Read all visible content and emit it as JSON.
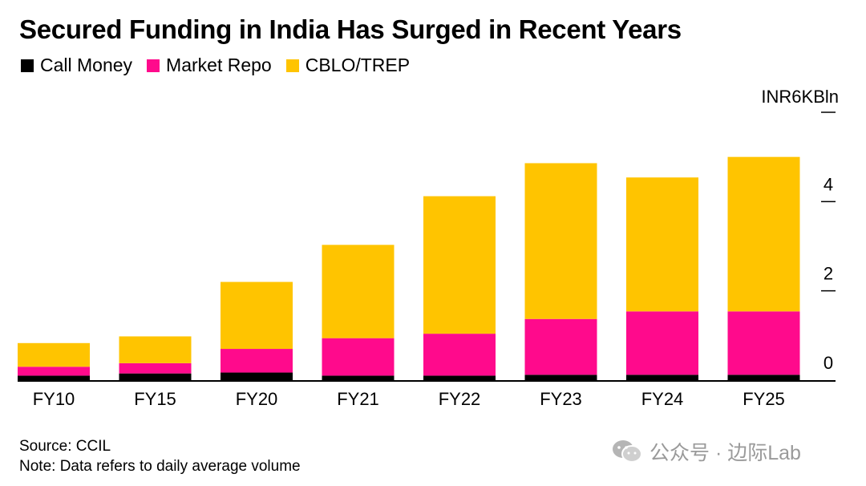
{
  "chart_data": {
    "type": "bar",
    "stacked": true,
    "title": "Secured Funding in India Has Surged in Recent Years",
    "unit_label": "INR6KBln",
    "categories": [
      "FY10",
      "FY15",
      "FY20",
      "FY21",
      "FY22",
      "FY23",
      "FY24",
      "FY25"
    ],
    "series": [
      {
        "name": "Call Money",
        "color": "#000000",
        "values": [
          0.1,
          0.15,
          0.17,
          0.1,
          0.1,
          0.12,
          0.12,
          0.12
        ]
      },
      {
        "name": "Market Repo",
        "color": "#ff0a8c",
        "values": [
          0.2,
          0.23,
          0.53,
          0.84,
          0.94,
          1.25,
          1.42,
          1.42
        ]
      },
      {
        "name": "CBLO/TREP",
        "color": "#ffc400",
        "values": [
          0.53,
          0.6,
          1.5,
          2.09,
          3.08,
          3.49,
          3.0,
          3.46
        ]
      }
    ],
    "yticks": [
      0,
      2,
      4
    ],
    "ylim": [
      0,
      6
    ],
    "grid": false,
    "legend_position": "top-left"
  },
  "footer": {
    "source": "Source: CCIL",
    "note": "Note: Data refers to daily average volume"
  },
  "watermark": {
    "text": "公众号 · 边际Lab",
    "icon": "wechat-icon"
  }
}
